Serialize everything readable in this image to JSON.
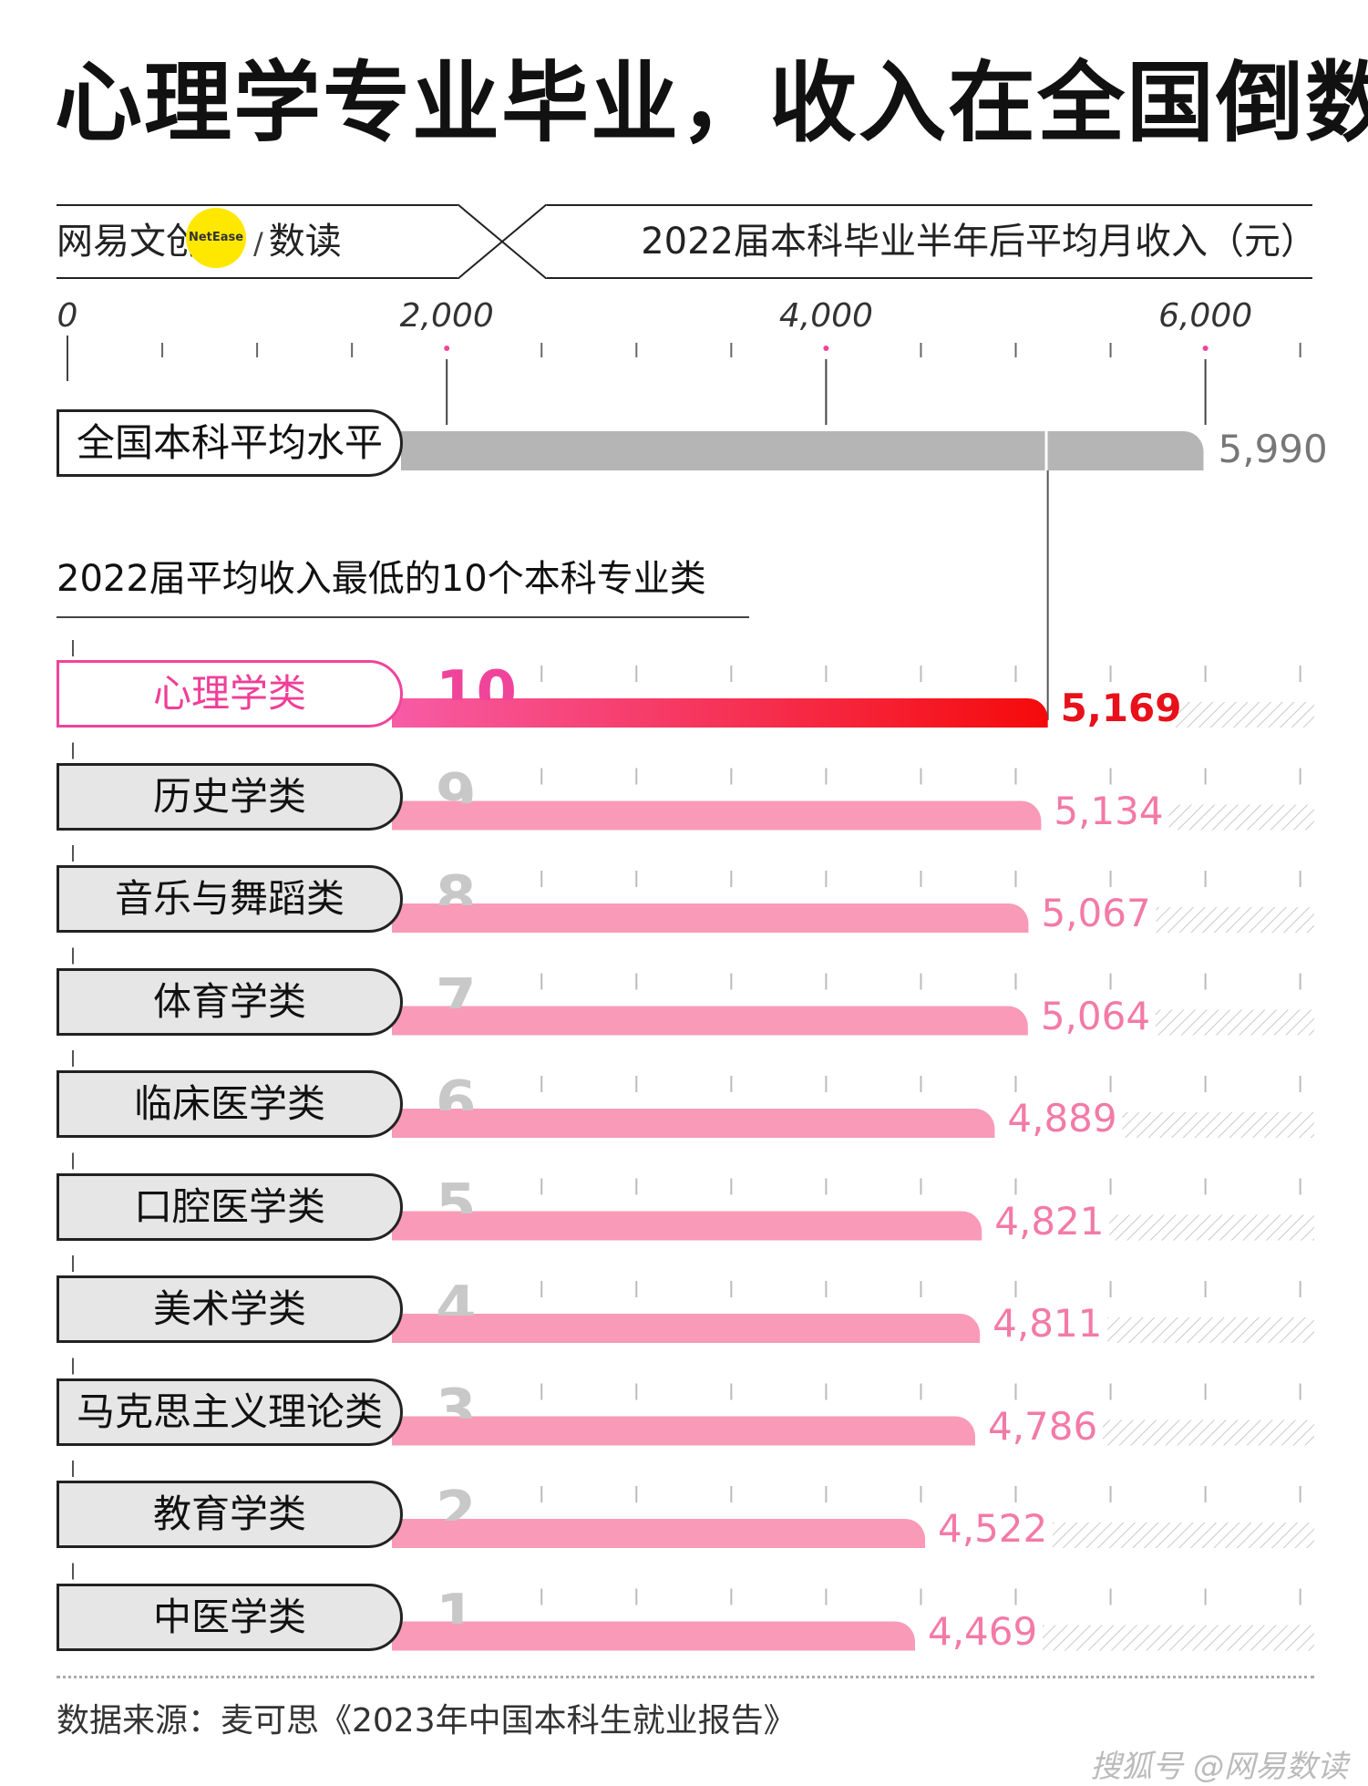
{
  "title": "心理学专业毕业，收入在全国倒数",
  "brand": {
    "name": "网易文创",
    "badge": "NetEase",
    "sep": "/",
    "sub": "数读"
  },
  "header_subtitle": "2022届本科毕业半年后平均月收入（元）",
  "section_title": "2022届平均收入最低的10个本科专业类",
  "source": "数据来源：麦可思《2023年中国本科生就业报告》",
  "watermark": "搜狐号 @网易数读",
  "colors": {
    "highlight_start": "#f75ca6",
    "highlight_end": "#f50a0a",
    "bar": "#f99ab8",
    "national_bar": "#b5b5b5",
    "value_pink": "#f37aa6",
    "value_red": "#e8101a"
  },
  "chart_data": {
    "type": "bar",
    "orientation": "horizontal",
    "xlim": [
      0,
      6500
    ],
    "ticks": [
      "0",
      "2,000",
      "4,000",
      "6,000"
    ],
    "tick_values": [
      0,
      2000,
      4000,
      6000
    ],
    "national": {
      "label": "全国本科平均水平",
      "value": 5990,
      "display": "5,990"
    },
    "categories": [
      "心理学类",
      "历史学类",
      "音乐与舞蹈类",
      "体育学类",
      "临床医学类",
      "口腔医学类",
      "美术学类",
      "马克思主义理论类",
      "教育学类",
      "中医学类"
    ],
    "ranks": [
      "10",
      "9",
      "8",
      "7",
      "6",
      "5",
      "4",
      "3",
      "2",
      "1"
    ],
    "values": [
      5169,
      5134,
      5067,
      5064,
      4889,
      4821,
      4811,
      4786,
      4522,
      4469
    ],
    "display": [
      "5,169",
      "5,134",
      "5,067",
      "5,064",
      "4,889",
      "4,821",
      "4,811",
      "4,786",
      "4,522",
      "4,469"
    ],
    "highlight": "心理学类"
  }
}
